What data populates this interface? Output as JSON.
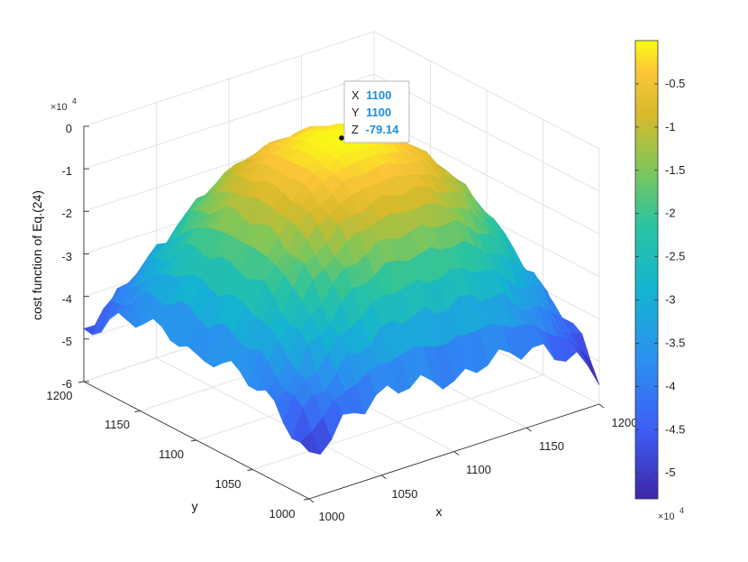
{
  "chart_data": {
    "type": "surface3d",
    "title": "",
    "xlabel": "x",
    "ylabel": "y",
    "zlabel": "cost function of Eq.(24)",
    "x_ticks": [
      "1000",
      "1050",
      "1100",
      "1150",
      "1200"
    ],
    "y_ticks": [
      "1000",
      "1050",
      "1100",
      "1150",
      "1200"
    ],
    "z_ticks": [
      "0",
      "-1",
      "-2",
      "-3",
      "-4",
      "-5",
      "-6"
    ],
    "z_exponent_label": "×10",
    "z_exponent_power": "4",
    "xlim": [
      1000,
      1200
    ],
    "ylim": [
      1000,
      1200
    ],
    "zlim": [
      -60000,
      0
    ],
    "grid": true,
    "colormap": "parula",
    "surface": {
      "peak_x": 1100,
      "peak_y": 1100,
      "peak_z": -79.14,
      "corner_z": {
        "x1000_y1000": -51000,
        "x1200_y1000": -53000,
        "x1000_y1200": -49000,
        "x1200_y1200": -47000
      },
      "edge_mid_z": {
        "x1000_y1100": -41000,
        "x1100_y1000": -44000,
        "x1200_y1100": -41000,
        "x1100_y1200": -38000
      }
    },
    "colorbar": {
      "ticks": [
        "-0.5",
        "-1",
        "-1.5",
        "-2",
        "-2.5",
        "-3",
        "-3.5",
        "-4",
        "-4.5",
        "-5"
      ],
      "range": [
        -53000,
        0
      ],
      "exponent_label": "×10",
      "exponent_power": "4"
    },
    "datatip": {
      "x_label": "X",
      "x_value": "1100",
      "y_label": "Y",
      "y_value": "1100",
      "z_label": "Z",
      "z_value": "-79.14"
    }
  }
}
